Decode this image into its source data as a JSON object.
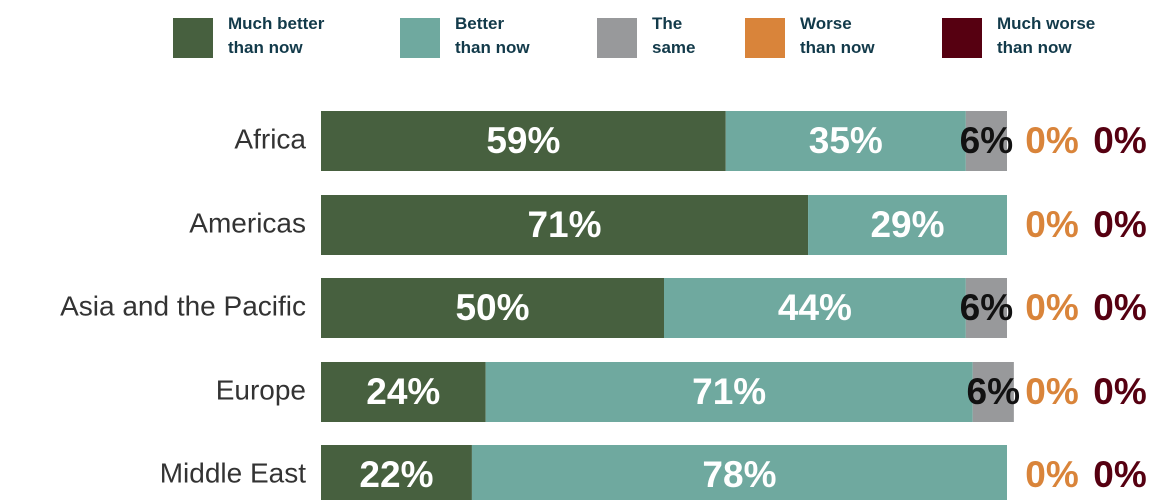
{
  "chart_data": {
    "type": "stacked_bar_horizontal",
    "categories": [
      "Africa",
      "Americas",
      "Asia and the Pacific",
      "Europe",
      "Middle East"
    ],
    "series": [
      {
        "name": "Much better\nthan now",
        "color": "#47603f",
        "values": [
          59,
          71,
          50,
          24,
          22
        ],
        "value_labels": [
          "59%",
          "71%",
          "50%",
          "24%",
          "22%"
        ]
      },
      {
        "name": "Better\nthan now",
        "color": "#6fa99f",
        "values": [
          35,
          29,
          44,
          71,
          78
        ],
        "value_labels": [
          "35%",
          "29%",
          "44%",
          "71%",
          "78%"
        ]
      },
      {
        "name": "The\nsame",
        "color": "#98999b",
        "values": [
          6,
          0,
          6,
          6,
          0
        ],
        "value_labels": [
          "6%",
          null,
          "6%",
          "6%",
          null
        ]
      },
      {
        "name": "Worse\nthan now",
        "color": "#d9843a",
        "values": [
          0,
          0,
          0,
          0,
          0
        ],
        "value_labels": [
          "0%",
          "0%",
          "0%",
          "0%",
          "0%"
        ]
      },
      {
        "name": "Much worse\nthan now",
        "color": "#560011",
        "values": [
          0,
          0,
          0,
          0,
          0
        ],
        "value_labels": [
          "0%",
          "0%",
          "0%",
          "0%",
          "0%"
        ]
      }
    ],
    "xlim": [
      0,
      100
    ]
  }
}
